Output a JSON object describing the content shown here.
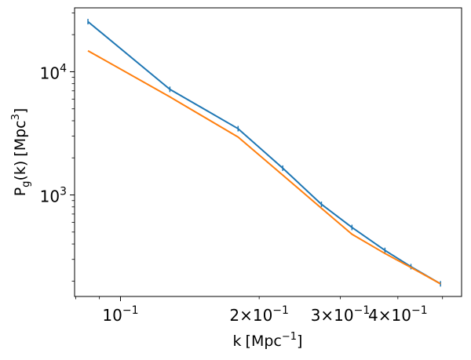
{
  "chart_data": {
    "type": "line",
    "title": "",
    "xlabel": "k [Mpc^-1]",
    "ylabel": "P_g(k) [Mpc^3]",
    "xscale": "log",
    "yscale": "log",
    "xlim": [
      0.0795,
      0.55
    ],
    "ylim": [
      150,
      33000
    ],
    "grid": false,
    "x_major_ticks": [
      {
        "value": 0.1,
        "base": "10",
        "exp": "-1"
      }
    ],
    "x_minor_labeled_ticks": [
      {
        "value": 0.2,
        "coef": "2",
        "base": "10",
        "exp": "-1"
      },
      {
        "value": 0.3,
        "coef": "3",
        "base": "10",
        "exp": "-1"
      },
      {
        "value": 0.4,
        "coef": "4",
        "base": "10",
        "exp": "-1"
      }
    ],
    "y_major_ticks": [
      {
        "value": 1000,
        "base": "10",
        "exp": "3"
      },
      {
        "value": 10000,
        "base": "10",
        "exp": "4"
      }
    ],
    "series": [
      {
        "color": "#1f77b4",
        "errorbars": true,
        "x": [
          0.085,
          0.128,
          0.18,
          0.225,
          0.273,
          0.318,
          0.375,
          0.427,
          0.495
        ],
        "y": [
          25500,
          7200,
          3450,
          1650,
          840,
          545,
          355,
          262,
          190
        ]
      },
      {
        "color": "#ff7f0e",
        "errorbars": false,
        "x": [
          0.085,
          0.128,
          0.18,
          0.225,
          0.273,
          0.318,
          0.375,
          0.427,
          0.495
        ],
        "y": [
          14800,
          6250,
          2950,
          1450,
          780,
          480,
          335,
          258,
          190
        ]
      }
    ]
  }
}
